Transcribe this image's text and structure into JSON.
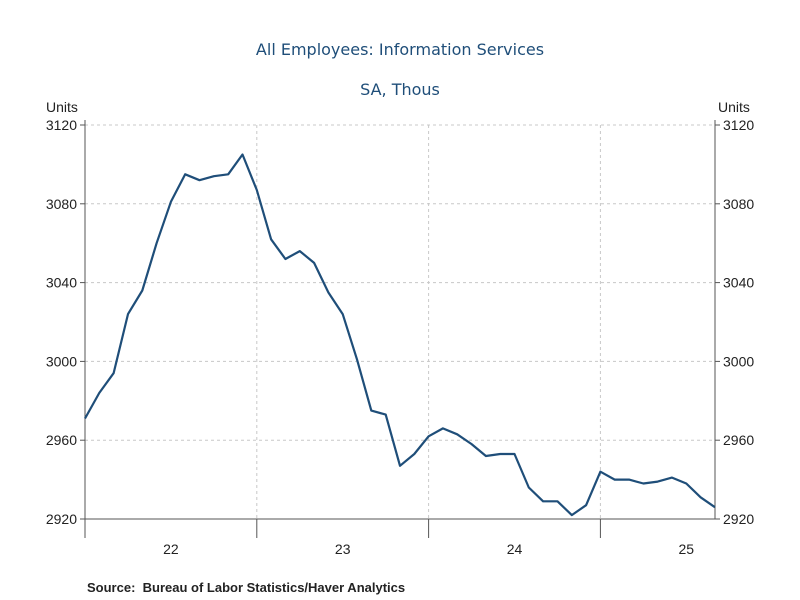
{
  "chart_data": {
    "type": "line",
    "title": "All Employees: Information Services",
    "subtitle": "SA, Thous",
    "ylabel_left": "Units",
    "ylabel_right": "Units",
    "ylim": [
      2920,
      3120
    ],
    "yticks": [
      2920,
      2960,
      3000,
      3040,
      3080,
      3120
    ],
    "xlim": [
      2021.5,
      2025.167
    ],
    "xticks": [
      {
        "label": "22",
        "value": 2022
      },
      {
        "label": "23",
        "value": 2023
      },
      {
        "label": "24",
        "value": 2024
      },
      {
        "label": "25",
        "value": 2025
      }
    ],
    "year_boundaries": [
      2022.5,
      2023.5,
      2024.5
    ],
    "series": [
      {
        "name": "All Employees: Information Services",
        "color": "#1f4e79",
        "start": 2021.5,
        "step_months": 1,
        "values": [
          2971,
          2984,
          2994,
          3024,
          3036,
          3060,
          3081,
          3095,
          3092,
          3094,
          3095,
          3105,
          3087,
          3062,
          3052,
          3056,
          3050,
          3035,
          3024,
          3001,
          2975,
          2973,
          2947,
          2953,
          2962,
          2966,
          2963,
          2958,
          2952,
          2953,
          2953,
          2936,
          2929,
          2929,
          2922,
          2927,
          2944,
          2940,
          2940,
          2938,
          2939,
          2941,
          2938,
          2931,
          2926
        ]
      }
    ]
  },
  "source": {
    "text": "Source:  Bureau of Labor Statistics/Haver Analytics"
  }
}
